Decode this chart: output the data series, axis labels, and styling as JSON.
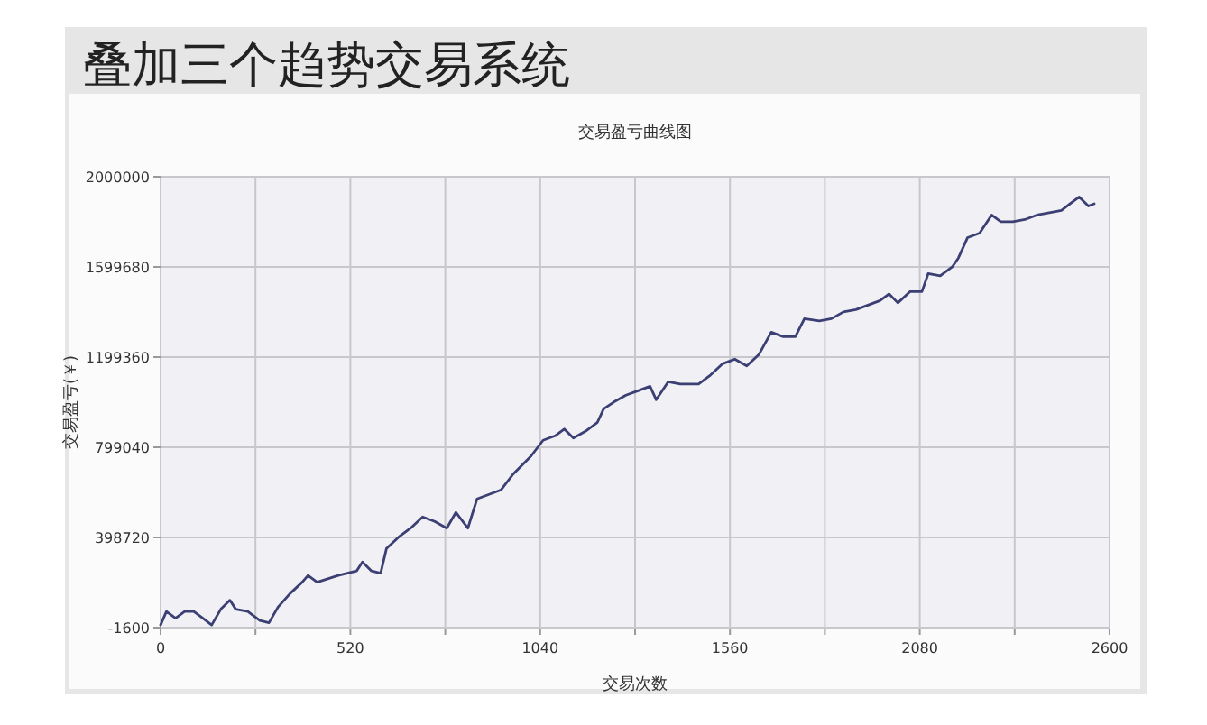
{
  "chart_data": {
    "type": "line",
    "title": "叠加三个趋势交易系统",
    "subtitle": "交易盈亏曲线图",
    "xlabel": "交易次数",
    "ylabel": "交易盈亏(￥)",
    "xlim": [
      0,
      2600
    ],
    "ylim": [
      -1600,
      2000000
    ],
    "xticks": [
      0,
      {
        "value": 260,
        "label": null
      },
      520,
      {
        "value": 780,
        "label": null
      },
      1040,
      {
        "value": 1300,
        "label": null
      },
      1560,
      {
        "value": 1820,
        "label": null
      },
      2080,
      {
        "value": 2340,
        "label": null
      },
      2600
    ],
    "yticks": [
      -1600,
      398720,
      799040,
      1199360,
      1599680,
      2000000
    ],
    "grid": true,
    "marker": "none",
    "line_style": "solid",
    "series": [
      {
        "color": "#3c3f73",
        "x": [
          0,
          16,
          41,
          66,
          91,
          116,
          140,
          165,
          190,
          206,
          239,
          272,
          297,
          322,
          355,
          388,
          404,
          429,
          487,
          537,
          553,
          578,
          603,
          619,
          652,
          685,
          718,
          751,
          784,
          809,
          842,
          867,
          900,
          933,
          966,
          1015,
          1048,
          1081,
          1106,
          1131,
          1164,
          1197,
          1214,
          1242,
          1275,
          1308,
          1341,
          1358,
          1391,
          1424,
          1474,
          1507,
          1540,
          1573,
          1606,
          1639,
          1673,
          1706,
          1739,
          1764,
          1805,
          1838,
          1871,
          1905,
          1938,
          1971,
          1996,
          2020,
          2053,
          2086,
          2103,
          2136,
          2169,
          2186,
          2211,
          2244,
          2277,
          2302,
          2335,
          2368,
          2401,
          2435,
          2468,
          2492,
          2517,
          2542,
          2558
        ],
        "values": [
          10000,
          70000,
          40000,
          70000,
          70000,
          40000,
          10000,
          80000,
          120000,
          80000,
          70000,
          30000,
          20000,
          90000,
          150000,
          200000,
          230000,
          200000,
          230000,
          250000,
          290000,
          250000,
          240000,
          350000,
          400000,
          440000,
          490000,
          470000,
          440000,
          510000,
          440000,
          570000,
          590000,
          610000,
          680000,
          760000,
          830000,
          850000,
          880000,
          840000,
          870000,
          910000,
          970000,
          1000000,
          1030000,
          1050000,
          1070000,
          1010000,
          1090000,
          1080000,
          1080000,
          1120000,
          1170000,
          1190000,
          1160000,
          1210000,
          1310000,
          1290000,
          1290000,
          1370000,
          1360000,
          1370000,
          1400000,
          1410000,
          1430000,
          1450000,
          1480000,
          1440000,
          1490000,
          1490000,
          1570000,
          1560000,
          1600000,
          1640000,
          1730000,
          1750000,
          1830000,
          1800000,
          1800000,
          1810000,
          1830000,
          1840000,
          1850000,
          1880000,
          1910000,
          1870000,
          1880000
        ]
      }
    ]
  }
}
